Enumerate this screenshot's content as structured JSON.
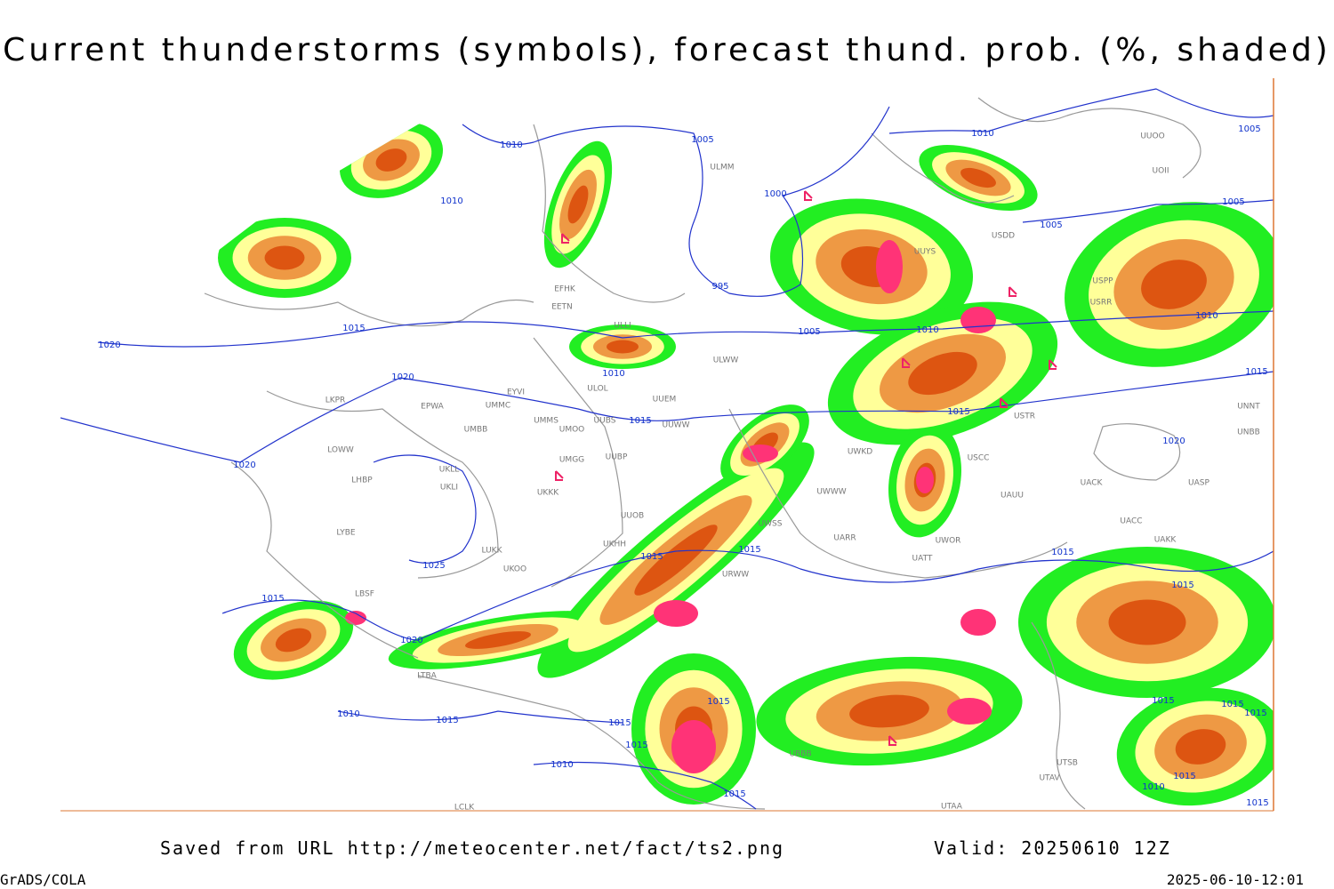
{
  "title": "Current thunderstorms (symbols), forecast thund. prob. (%, shaded)",
  "map": {
    "isobar_labels": [
      "1010",
      "1010",
      "1005",
      "1010",
      "1005",
      "1000",
      "1005",
      "1005",
      "995",
      "1015",
      "1005",
      "1010",
      "1010",
      "1020",
      "1010",
      "1020",
      "1015",
      "1015",
      "1015",
      "1020",
      "1020",
      "1015",
      "1025",
      "1015",
      "1015",
      "1015",
      "1015",
      "1020",
      "1010",
      "1015",
      "1015",
      "1015",
      "1015",
      "1015",
      "1015",
      "1015",
      "1010",
      "1015",
      "1010",
      "1015",
      "1015"
    ],
    "stations": [
      "EFHK",
      "EETN",
      "ULLI",
      "ULOL",
      "UUEM",
      "EYVI",
      "EPWA",
      "UMMC",
      "UMMS",
      "UUBS",
      "UUWW",
      "UMOO",
      "UMBB",
      "LKPR",
      "LOWW",
      "LHBP",
      "UKLL",
      "UKLI",
      "UMGG",
      "UUBP",
      "UKKK",
      "LYBE",
      "LUKK",
      "UUOB",
      "UKHH",
      "UKOO",
      "LBSF",
      "LTBA",
      "URWW",
      "UWSS",
      "UARR",
      "UATT",
      "UWOR",
      "UAUU",
      "UACC",
      "UAKK",
      "UACK",
      "UASP",
      "UNNT",
      "UNBB",
      "ULWW",
      "ULMM",
      "UUYS",
      "USDD",
      "USPP",
      "USRR",
      "USTR",
      "USCC",
      "UWKD",
      "UWWW",
      "UUOO",
      "UOII",
      "UTSB",
      "UTAV",
      "UBBB",
      "UTAA",
      "LCLK"
    ]
  },
  "footer": {
    "source": "Saved from URL http://meteocenter.net/fact/ts2.png",
    "valid": "Valid: 20250610 12Z",
    "software": "GrADS/COLA",
    "timestamp": "2025-06-10-12:01"
  }
}
